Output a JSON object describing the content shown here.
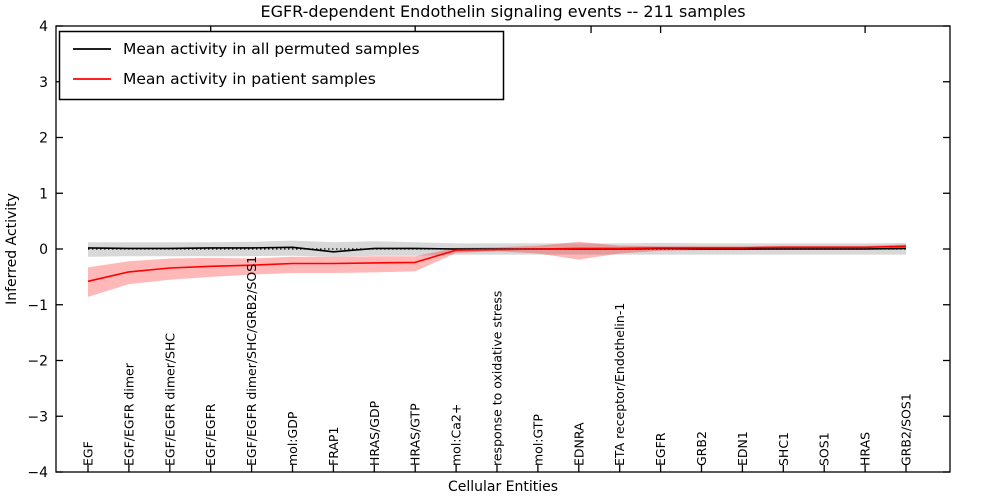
{
  "title": "EGFR-dependent Endothelin signaling events -- 211 samples",
  "xlabel": "Cellular Entities",
  "ylabel": "Inferred Activity",
  "legend": {
    "entries": [
      {
        "label": "Mean activity in all permuted samples",
        "color": "#000000"
      },
      {
        "label": "Mean activity in patient samples",
        "color": "#ff0000"
      }
    ]
  },
  "chart_data": {
    "type": "line",
    "title": "EGFR-dependent Endothelin signaling events -- 211 samples",
    "xlabel": "Cellular Entities",
    "ylabel": "Inferred Activity",
    "ylim": [
      -4,
      4
    ],
    "yticks": [
      4,
      3,
      2,
      1,
      0,
      -1,
      -2,
      -3,
      -4
    ],
    "ytick_labels": [
      "4",
      "3",
      "2",
      "1",
      "0",
      "−1",
      "−2",
      "−3",
      "−4"
    ],
    "grid": false,
    "legend_position": "upper left",
    "zero_line": {
      "y": 0,
      "style": "dotted",
      "color": "#000000"
    },
    "categories": [
      "EGF",
      "EGF/EGFR dimer",
      "EGF/EGFR dimer/SHC",
      "EGF/EGFR",
      "EGF/EGFR dimer/SHC/GRB2/SOS1",
      "mol:GDP",
      "FRAP1",
      "HRAS/GDP",
      "HRAS/GTP",
      "mol:Ca2+",
      "response to oxidative stress",
      "mol:GTP",
      "EDNRA",
      "ETA receptor/Endothelin-1",
      "EGFR",
      "GRB2",
      "EDN1",
      "SHC1",
      "SOS1",
      "HRAS",
      "GRB2/SOS1"
    ],
    "series": [
      {
        "name": "Mean activity in all permuted samples",
        "color": "#000000",
        "band_color": "rgba(125,125,125,0.30)",
        "values": [
          0.02,
          0.01,
          0.01,
          0.02,
          0.02,
          0.03,
          -0.05,
          0.01,
          0.01,
          0.0,
          0.0,
          0.0,
          0.0,
          0.0,
          0.01,
          0.0,
          0.0,
          0.0,
          0.0,
          0.0,
          0.01
        ],
        "band_lower": [
          -0.14,
          -0.13,
          -0.13,
          -0.13,
          -0.13,
          -0.12,
          -0.14,
          -0.12,
          -0.12,
          -0.1,
          -0.1,
          -0.1,
          -0.1,
          -0.1,
          -0.1,
          -0.1,
          -0.1,
          -0.1,
          -0.1,
          -0.1,
          -0.1
        ],
        "band_upper": [
          0.12,
          0.12,
          0.12,
          0.12,
          0.13,
          0.15,
          0.12,
          0.14,
          0.12,
          0.1,
          0.1,
          0.1,
          0.1,
          0.1,
          0.11,
          0.1,
          0.1,
          0.1,
          0.1,
          0.1,
          0.11
        ]
      },
      {
        "name": "Mean activity in patient samples",
        "color": "#ff0000",
        "band_color": "rgba(255,0,0,0.28)",
        "values": [
          -0.58,
          -0.41,
          -0.34,
          -0.31,
          -0.29,
          -0.26,
          -0.26,
          -0.25,
          -0.24,
          -0.02,
          -0.01,
          0.0,
          0.01,
          0.01,
          0.02,
          0.02,
          0.02,
          0.03,
          0.03,
          0.03,
          0.05
        ],
        "band_lower": [
          -0.86,
          -0.63,
          -0.55,
          -0.5,
          -0.46,
          -0.43,
          -0.43,
          -0.42,
          -0.4,
          -0.07,
          -0.04,
          -0.08,
          -0.19,
          -0.08,
          -0.03,
          -0.02,
          -0.02,
          -0.01,
          -0.01,
          -0.01,
          0.0
        ],
        "band_upper": [
          -0.33,
          -0.22,
          -0.17,
          -0.16,
          -0.17,
          -0.14,
          -0.14,
          -0.13,
          -0.13,
          0.02,
          0.03,
          0.06,
          0.13,
          0.06,
          0.05,
          0.05,
          0.05,
          0.06,
          0.06,
          0.06,
          0.08
        ]
      }
    ]
  }
}
